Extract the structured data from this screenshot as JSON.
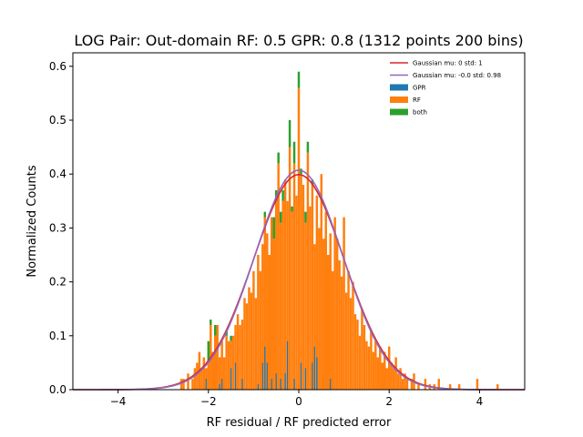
{
  "chart_data": {
    "type": "bar",
    "title": "LOG Pair: Out-domain RF: 0.5 GPR: 0.8 (1312 points 200 bins)",
    "xlabel": "RF residual / RF predicted error",
    "ylabel": "Normalized Counts",
    "xlim": [
      -5.0,
      5.0
    ],
    "ylim": [
      0,
      0.625
    ],
    "xticks": [
      -4,
      -2,
      0,
      2,
      4
    ],
    "yticks": [
      0.0,
      0.1,
      0.2,
      0.3,
      0.4,
      0.5,
      0.6
    ],
    "xtick_labels": [
      "−4",
      "−2",
      "0",
      "2",
      "4"
    ],
    "ytick_labels": [
      "0.0",
      "0.1",
      "0.2",
      "0.3",
      "0.4",
      "0.5",
      "0.6"
    ],
    "bin_width": 0.05,
    "colors": {
      "GPR": "#1f77b4",
      "RF": "#ff7f0e",
      "both": "#2ca02c",
      "gauss1": "#d62728",
      "gauss2": "#9467bd"
    },
    "legend": {
      "position": "top-right",
      "entries": [
        {
          "label": "Gaussian mu: 0 std: 1",
          "kind": "line",
          "color_key": "gauss1"
        },
        {
          "label": "Gaussian mu: -0.0 std: 0.98",
          "kind": "line",
          "color_key": "gauss2"
        },
        {
          "label": "GPR",
          "kind": "patch",
          "color_key": "GPR"
        },
        {
          "label": "RF",
          "kind": "patch",
          "color_key": "RF"
        },
        {
          "label": "both",
          "kind": "patch",
          "color_key": "both"
        }
      ]
    },
    "gaussians": [
      {
        "name": "Gaussian mu: 0 std: 1",
        "mu": 0.0,
        "std": 1.0
      },
      {
        "name": "Gaussian mu: -0.0 std: 0.98",
        "mu": 0.0,
        "std": 0.98
      }
    ],
    "rf_bars": [
      {
        "x": -2.6,
        "y": 0.02
      },
      {
        "x": -2.55,
        "y": 0.02
      },
      {
        "x": -2.45,
        "y": 0.03
      },
      {
        "x": -2.35,
        "y": 0.02
      },
      {
        "x": -2.3,
        "y": 0.04
      },
      {
        "x": -2.25,
        "y": 0.05
      },
      {
        "x": -2.2,
        "y": 0.07
      },
      {
        "x": -2.15,
        "y": 0.04
      },
      {
        "x": -2.1,
        "y": 0.06
      },
      {
        "x": -2.05,
        "y": 0.04
      },
      {
        "x": -2.0,
        "y": 0.05
      },
      {
        "x": -1.95,
        "y": 0.12
      },
      {
        "x": -1.9,
        "y": 0.07
      },
      {
        "x": -1.85,
        "y": 0.1
      },
      {
        "x": -1.8,
        "y": 0.12
      },
      {
        "x": -1.75,
        "y": 0.06
      },
      {
        "x": -1.7,
        "y": 0.09
      },
      {
        "x": -1.65,
        "y": 0.06
      },
      {
        "x": -1.6,
        "y": 0.1
      },
      {
        "x": -1.55,
        "y": 0.09
      },
      {
        "x": -1.5,
        "y": 0.09
      },
      {
        "x": -1.45,
        "y": 0.1
      },
      {
        "x": -1.4,
        "y": 0.12
      },
      {
        "x": -1.35,
        "y": 0.14
      },
      {
        "x": -1.3,
        "y": 0.12
      },
      {
        "x": -1.25,
        "y": 0.13
      },
      {
        "x": -1.2,
        "y": 0.17
      },
      {
        "x": -1.15,
        "y": 0.16
      },
      {
        "x": -1.1,
        "y": 0.19
      },
      {
        "x": -1.05,
        "y": 0.18
      },
      {
        "x": -1.0,
        "y": 0.22
      },
      {
        "x": -0.95,
        "y": 0.17
      },
      {
        "x": -0.9,
        "y": 0.25
      },
      {
        "x": -0.85,
        "y": 0.22
      },
      {
        "x": -0.8,
        "y": 0.27
      },
      {
        "x": -0.75,
        "y": 0.32
      },
      {
        "x": -0.7,
        "y": 0.29
      },
      {
        "x": -0.65,
        "y": 0.25
      },
      {
        "x": -0.6,
        "y": 0.32
      },
      {
        "x": -0.55,
        "y": 0.28
      },
      {
        "x": -0.5,
        "y": 0.35
      },
      {
        "x": -0.45,
        "y": 0.42
      },
      {
        "x": -0.4,
        "y": 0.31
      },
      {
        "x": -0.35,
        "y": 0.35
      },
      {
        "x": -0.3,
        "y": 0.39
      },
      {
        "x": -0.25,
        "y": 0.35
      },
      {
        "x": -0.2,
        "y": 0.45
      },
      {
        "x": -0.15,
        "y": 0.33
      },
      {
        "x": -0.1,
        "y": 0.42
      },
      {
        "x": -0.05,
        "y": 0.36
      },
      {
        "x": 0.0,
        "y": 0.56
      },
      {
        "x": 0.05,
        "y": 0.4
      },
      {
        "x": 0.1,
        "y": 0.38
      },
      {
        "x": 0.15,
        "y": 0.31
      },
      {
        "x": 0.2,
        "y": 0.44
      },
      {
        "x": 0.25,
        "y": 0.34
      },
      {
        "x": 0.3,
        "y": 0.38
      },
      {
        "x": 0.35,
        "y": 0.27
      },
      {
        "x": 0.4,
        "y": 0.36
      },
      {
        "x": 0.45,
        "y": 0.3
      },
      {
        "x": 0.5,
        "y": 0.4
      },
      {
        "x": 0.55,
        "y": 0.28
      },
      {
        "x": 0.6,
        "y": 0.33
      },
      {
        "x": 0.65,
        "y": 0.25
      },
      {
        "x": 0.7,
        "y": 0.29
      },
      {
        "x": 0.75,
        "y": 0.22
      },
      {
        "x": 0.8,
        "y": 0.32
      },
      {
        "x": 0.85,
        "y": 0.28
      },
      {
        "x": 0.9,
        "y": 0.24
      },
      {
        "x": 0.95,
        "y": 0.21
      },
      {
        "x": 1.0,
        "y": 0.32
      },
      {
        "x": 1.05,
        "y": 0.18
      },
      {
        "x": 1.1,
        "y": 0.22
      },
      {
        "x": 1.15,
        "y": 0.17
      },
      {
        "x": 1.2,
        "y": 0.2
      },
      {
        "x": 1.25,
        "y": 0.14
      },
      {
        "x": 1.3,
        "y": 0.13
      },
      {
        "x": 1.35,
        "y": 0.1
      },
      {
        "x": 1.4,
        "y": 0.15
      },
      {
        "x": 1.45,
        "y": 0.12
      },
      {
        "x": 1.5,
        "y": 0.09
      },
      {
        "x": 1.55,
        "y": 0.08
      },
      {
        "x": 1.6,
        "y": 0.11
      },
      {
        "x": 1.65,
        "y": 0.07
      },
      {
        "x": 1.7,
        "y": 0.09
      },
      {
        "x": 1.75,
        "y": 0.06
      },
      {
        "x": 1.8,
        "y": 0.08
      },
      {
        "x": 1.85,
        "y": 0.05
      },
      {
        "x": 1.9,
        "y": 0.07
      },
      {
        "x": 1.95,
        "y": 0.04
      },
      {
        "x": 2.0,
        "y": 0.08
      },
      {
        "x": 2.05,
        "y": 0.05
      },
      {
        "x": 2.1,
        "y": 0.04
      },
      {
        "x": 2.15,
        "y": 0.06
      },
      {
        "x": 2.2,
        "y": 0.03
      },
      {
        "x": 2.25,
        "y": 0.04
      },
      {
        "x": 2.3,
        "y": 0.02
      },
      {
        "x": 2.35,
        "y": 0.03
      },
      {
        "x": 2.4,
        "y": 0.02
      },
      {
        "x": 2.5,
        "y": 0.02
      },
      {
        "x": 2.55,
        "y": 0.03
      },
      {
        "x": 2.65,
        "y": 0.01
      },
      {
        "x": 2.8,
        "y": 0.02
      },
      {
        "x": 2.9,
        "y": 0.01
      },
      {
        "x": 3.0,
        "y": 0.01
      },
      {
        "x": 3.1,
        "y": 0.02
      },
      {
        "x": 3.35,
        "y": 0.01
      },
      {
        "x": 3.55,
        "y": 0.01
      },
      {
        "x": 3.95,
        "y": 0.02
      },
      {
        "x": 4.4,
        "y": 0.01
      }
    ],
    "gpr_bars": [
      {
        "x": -2.05,
        "y": 0.02
      },
      {
        "x": -1.75,
        "y": 0.01
      },
      {
        "x": -1.7,
        "y": 0.02
      },
      {
        "x": -1.5,
        "y": 0.04
      },
      {
        "x": -1.4,
        "y": 0.05
      },
      {
        "x": -1.25,
        "y": 0.02
      },
      {
        "x": -0.9,
        "y": 0.01
      },
      {
        "x": -0.8,
        "y": 0.05
      },
      {
        "x": -0.75,
        "y": 0.08
      },
      {
        "x": -0.7,
        "y": 0.05
      },
      {
        "x": -0.6,
        "y": 0.02
      },
      {
        "x": -0.5,
        "y": 0.03
      },
      {
        "x": -0.4,
        "y": 0.02
      },
      {
        "x": -0.3,
        "y": 0.03
      },
      {
        "x": -0.25,
        "y": 0.09
      },
      {
        "x": -0.1,
        "y": 0.02
      },
      {
        "x": 0.05,
        "y": 0.05
      },
      {
        "x": 0.15,
        "y": 0.04
      },
      {
        "x": 0.3,
        "y": 0.05
      },
      {
        "x": 0.35,
        "y": 0.08
      },
      {
        "x": 0.4,
        "y": 0.06
      },
      {
        "x": 0.7,
        "y": 0.02
      }
    ],
    "both_caps": [
      {
        "x": -2.0,
        "y0": 0.05,
        "y1": 0.09
      },
      {
        "x": -1.95,
        "y0": 0.12,
        "y1": 0.13
      },
      {
        "x": -1.85,
        "y0": 0.1,
        "y1": 0.12
      },
      {
        "x": -1.6,
        "y0": 0.1,
        "y1": 0.11
      },
      {
        "x": -1.5,
        "y0": 0.09,
        "y1": 0.1
      },
      {
        "x": -0.75,
        "y0": 0.32,
        "y1": 0.33
      },
      {
        "x": -0.55,
        "y0": 0.28,
        "y1": 0.32
      },
      {
        "x": -0.5,
        "y0": 0.35,
        "y1": 0.37
      },
      {
        "x": -0.45,
        "y0": 0.42,
        "y1": 0.44
      },
      {
        "x": -0.4,
        "y0": 0.31,
        "y1": 0.33
      },
      {
        "x": -0.35,
        "y0": 0.35,
        "y1": 0.37
      },
      {
        "x": -0.2,
        "y0": 0.45,
        "y1": 0.5
      },
      {
        "x": -0.1,
        "y0": 0.42,
        "y1": 0.46
      },
      {
        "x": 0.0,
        "y0": 0.56,
        "y1": 0.59
      },
      {
        "x": 0.05,
        "y0": 0.4,
        "y1": 0.41
      },
      {
        "x": 0.15,
        "y0": 0.31,
        "y1": 0.33
      },
      {
        "x": 0.2,
        "y0": 0.44,
        "y1": 0.46
      },
      {
        "x": 0.3,
        "y0": 0.38,
        "y1": 0.39
      },
      {
        "x": -0.15,
        "y0": 0.33,
        "y1": 0.34
      }
    ]
  }
}
